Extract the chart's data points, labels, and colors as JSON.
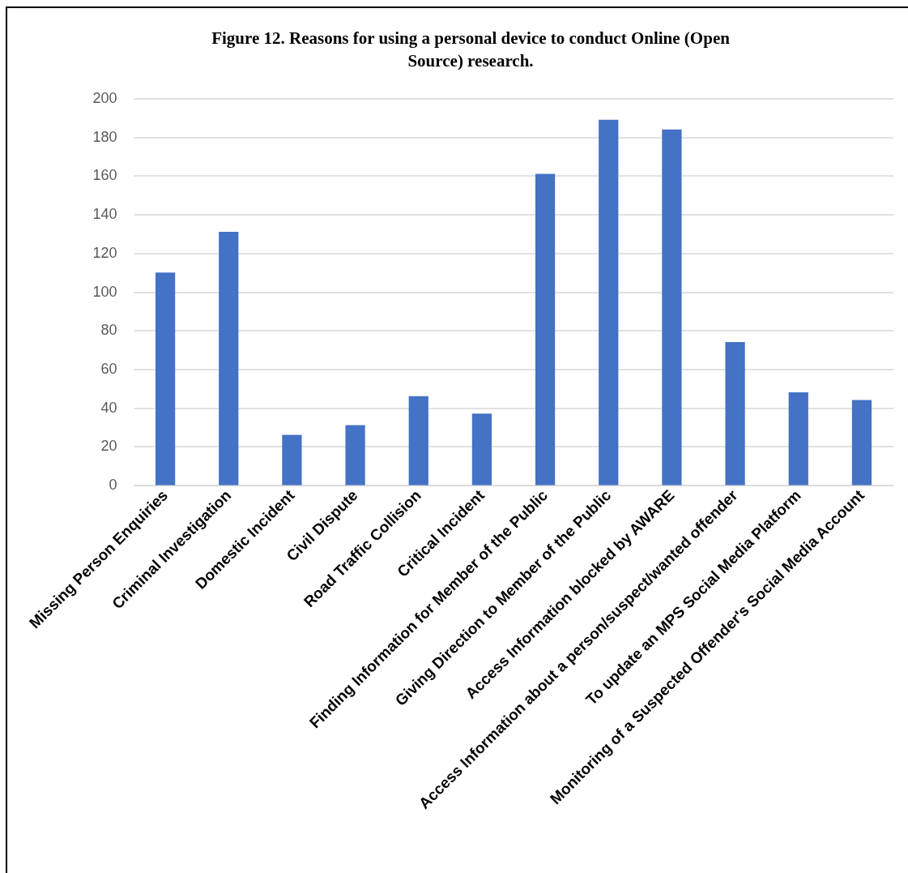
{
  "chart_data": {
    "type": "bar",
    "title": "Figure 12. Reasons for using a personal device to conduct Online (Open Source) research.",
    "categories": [
      "Missing Person Enquiries",
      "Criminal Investigation",
      "Domestic Incident",
      "Civil Dispute",
      "Road Traffic Collision",
      "Critical Incident",
      "Finding Information for Member of the Public",
      "Giving Direction to Member of the Public",
      "Access Information blocked by AWARE",
      "Access Information about a person/suspect/wanted offender",
      "To update an MPS Social Media Platform",
      "Monitoring of a Suspected Offender's Social Media Account"
    ],
    "values": [
      110,
      131,
      26,
      31,
      46,
      37,
      161,
      189,
      184,
      74,
      48,
      44
    ],
    "color": "#4472c4",
    "ylim": [
      0,
      200
    ],
    "yticks": [
      0,
      20,
      40,
      60,
      80,
      100,
      120,
      140,
      160,
      180,
      200
    ],
    "grid": "y"
  }
}
